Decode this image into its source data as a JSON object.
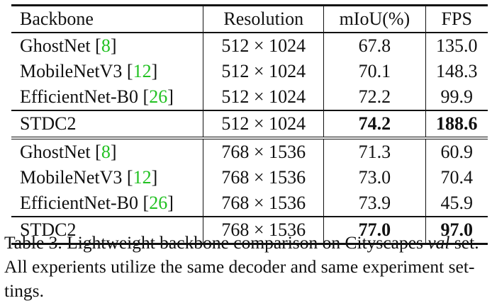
{
  "table": {
    "headers": [
      "Backbone",
      "Resolution",
      "mIoU(%)",
      "FPS"
    ],
    "groups": [
      {
        "rows": [
          {
            "backbone": "GhostNet",
            "cite": "8",
            "resolution": "512 × 1024",
            "miou": "67.8",
            "fps": "135.0",
            "bold_miou": false,
            "bold_fps": false
          },
          {
            "backbone": "MobileNetV3",
            "cite": "12",
            "resolution": "512 × 1024",
            "miou": "70.1",
            "fps": "148.3",
            "bold_miou": false,
            "bold_fps": false
          },
          {
            "backbone": "EfficientNet-B0",
            "cite": "26",
            "resolution": "512 × 1024",
            "miou": "72.2",
            "fps": "99.9",
            "bold_miou": false,
            "bold_fps": false
          }
        ],
        "highlight": {
          "backbone": "STDC2",
          "resolution": "512 × 1024",
          "miou": "74.2",
          "fps": "188.6",
          "bold_miou": true,
          "bold_fps": true
        }
      },
      {
        "rows": [
          {
            "backbone": "GhostNet",
            "cite": "8",
            "resolution": "768 × 1536",
            "miou": "71.3",
            "fps": "60.9",
            "bold_miou": false,
            "bold_fps": false
          },
          {
            "backbone": "MobileNetV3",
            "cite": "12",
            "resolution": "768 × 1536",
            "miou": "73.0",
            "fps": "70.4",
            "bold_miou": false,
            "bold_fps": false
          },
          {
            "backbone": "EfficientNet-B0",
            "cite": "26",
            "resolution": "768 × 1536",
            "miou": "73.9",
            "fps": "45.9",
            "bold_miou": false,
            "bold_fps": false
          }
        ],
        "highlight": {
          "backbone": "STDC2",
          "resolution": "768 × 1536",
          "miou": "77.0",
          "fps": "97.0",
          "bold_miou": true,
          "bold_fps": true
        }
      }
    ],
    "citation_color": "#22c122"
  },
  "caption": {
    "label": "Table 3.",
    "text_before_italic": "Lightweight backbone comparison on Cityscapes",
    "italic": "val",
    "text_after_italic": "set.",
    "line2": "All experients utilize the same decoder and same experiment set-",
    "line3": "tings."
  }
}
